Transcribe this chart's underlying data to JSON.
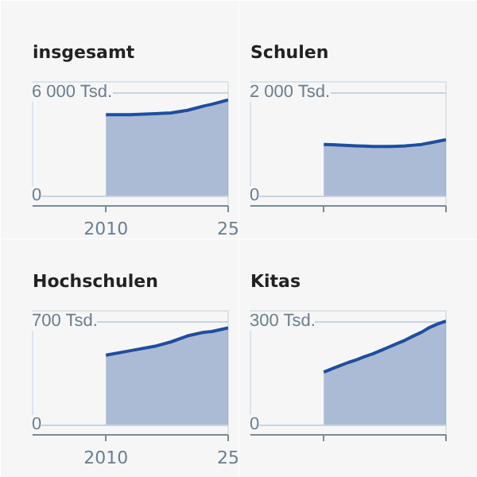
{
  "chart_data": [
    {
      "type": "area",
      "title": "insgesamt",
      "x": [
        2010,
        2013,
        2016,
        2018,
        2020,
        2022,
        2023,
        2025
      ],
      "values": [
        4700,
        4700,
        4750,
        4800,
        4950,
        5200,
        5300,
        5550
      ],
      "color": "#1f4e9c",
      "xlim": [
        2001,
        2025
      ],
      "xticks": [
        2010,
        {
          "value": 2025,
          "label": "25"
        }
      ],
      "ylim": [
        -600,
        6600
      ],
      "yticks": [
        0,
        {
          "value": 6000,
          "label": "6 000 Tsd."
        }
      ],
      "grid": "y"
    },
    {
      "type": "area",
      "title": "Schulen",
      "categories": [
        null,
        null,
        null,
        null,
        null,
        null,
        null,
        null,
        null,
        null,
        null,
        null,
        null,
        null,
        null,
        null,
        null,
        null,
        null,
        null,
        null,
        null,
        null,
        null,
        null
      ],
      "values": [
        null,
        null,
        null,
        null,
        null,
        null,
        null,
        null,
        null,
        990,
        985,
        978,
        970,
        963,
        956,
        950,
        950,
        950,
        955,
        960,
        975,
        990,
        1020,
        1050,
        1080
      ],
      "color": "#1f4e9c",
      "ylim": [
        -200,
        2200
      ],
      "yticks": [
        0,
        {
          "value": 2000,
          "label": "2 000 Tsd."
        }
      ],
      "grid": "y",
      "tick_labels": "y"
    },
    {
      "type": "area",
      "title": "Hochschulen",
      "x": [
        2010,
        2013,
        2016,
        2018,
        2020,
        2022,
        2023,
        2025
      ],
      "values": [
        470,
        500,
        530,
        560,
        600,
        625,
        630,
        655
      ],
      "color": "#1f4e9c",
      "xlim": [
        2001,
        2025
      ],
      "xticks": [
        2010,
        {
          "value": 2025,
          "label": "25"
        }
      ],
      "ylim": [
        -70,
        770
      ],
      "yticks": [
        0,
        {
          "value": 700,
          "label": "700 Tsd."
        }
      ],
      "grid": "y"
    },
    {
      "type": "area",
      "title": "Kitas",
      "categories": [
        null,
        null,
        null,
        null,
        null,
        null,
        null,
        null,
        null,
        null,
        null,
        null,
        null,
        null,
        null,
        null,
        null,
        null,
        null,
        null,
        null,
        null,
        null,
        null,
        null
      ],
      "values": [
        null,
        null,
        null,
        null,
        null,
        null,
        null,
        null,
        null,
        152,
        162,
        171,
        180,
        188,
        197,
        205,
        215,
        225,
        235,
        245,
        257,
        268,
        282,
        292,
        300
      ],
      "color": "#1f4e9c",
      "ylim": [
        -30,
        330
      ],
      "yticks": [
        0,
        {
          "value": 300,
          "label": "300 Tsd."
        }
      ],
      "grid": "y",
      "tick_labels": "y"
    }
  ]
}
